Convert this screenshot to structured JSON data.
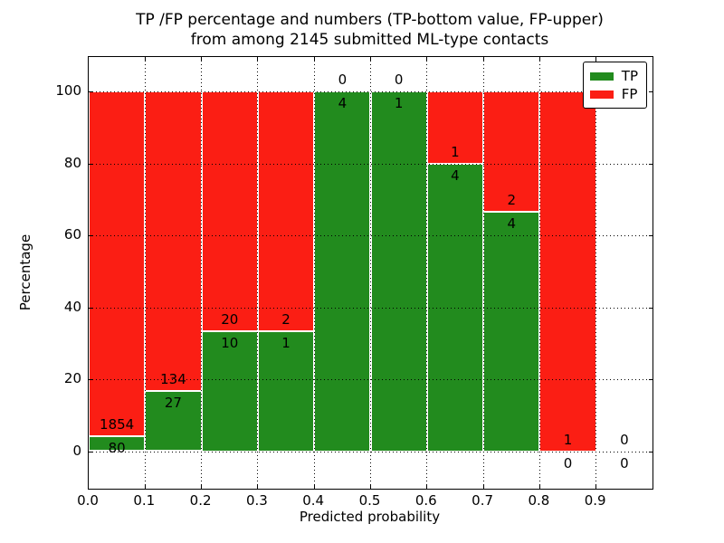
{
  "title": {
    "line1": "TP /FP percentage and numbers (TP-bottom value, FP-upper)",
    "line2": "from among 2145 submitted ML-type contacts"
  },
  "axes": {
    "xlabel": "Predicted probability",
    "ylabel": "Percentage",
    "xtick_labels": [
      "0.0",
      "0.1",
      "0.2",
      "0.3",
      "0.4",
      "0.5",
      "0.6",
      "0.7",
      "0.8",
      "0.9"
    ],
    "ytick_labels": [
      "0",
      "20",
      "40",
      "60",
      "80",
      "100"
    ],
    "xlim": [
      0.0,
      1.0
    ],
    "ylim_percent": [
      0,
      100
    ],
    "grid": "dotted"
  },
  "legend": {
    "position": "upper right",
    "items": [
      {
        "label": "TP",
        "color": "#228b1e"
      },
      {
        "label": "FP",
        "color": "#fb1e14"
      }
    ]
  },
  "colors": {
    "tp_green": "#228b1e",
    "fp_red": "#fb1e14",
    "bar_edge": "#ffffff",
    "frame": "#000000"
  },
  "chart_data": {
    "type": "bar",
    "stacked": true,
    "normalization": "each bin scaled to 100%; annotated numbers are raw counts (TP below boundary, FP above)",
    "title": "TP /FP percentage and numbers (TP-bottom value, FP-upper) from among 2145 submitted ML-type contacts",
    "xlabel": "Predicted probability",
    "ylabel": "Percentage",
    "total_contacts": 2145,
    "bin_edges": [
      0.0,
      0.1,
      0.2,
      0.3,
      0.4,
      0.5,
      0.6,
      0.7,
      0.8,
      0.9,
      1.0
    ],
    "series": [
      {
        "name": "TP",
        "color": "#228b1e",
        "counts": [
          80,
          27,
          10,
          1,
          4,
          1,
          4,
          4,
          0,
          0
        ],
        "percent": [
          4.14,
          16.77,
          33.33,
          33.33,
          100,
          100,
          80,
          66.67,
          0,
          0
        ]
      },
      {
        "name": "FP",
        "color": "#fb1e14",
        "counts": [
          1854,
          134,
          20,
          2,
          0,
          0,
          1,
          2,
          1,
          0
        ],
        "percent": [
          95.86,
          83.23,
          66.67,
          66.67,
          0,
          0,
          20,
          33.33,
          100,
          0
        ]
      }
    ],
    "ytick_values": [
      0,
      20,
      40,
      60,
      80,
      100
    ],
    "legend_position": "upper right",
    "grid": true
  }
}
